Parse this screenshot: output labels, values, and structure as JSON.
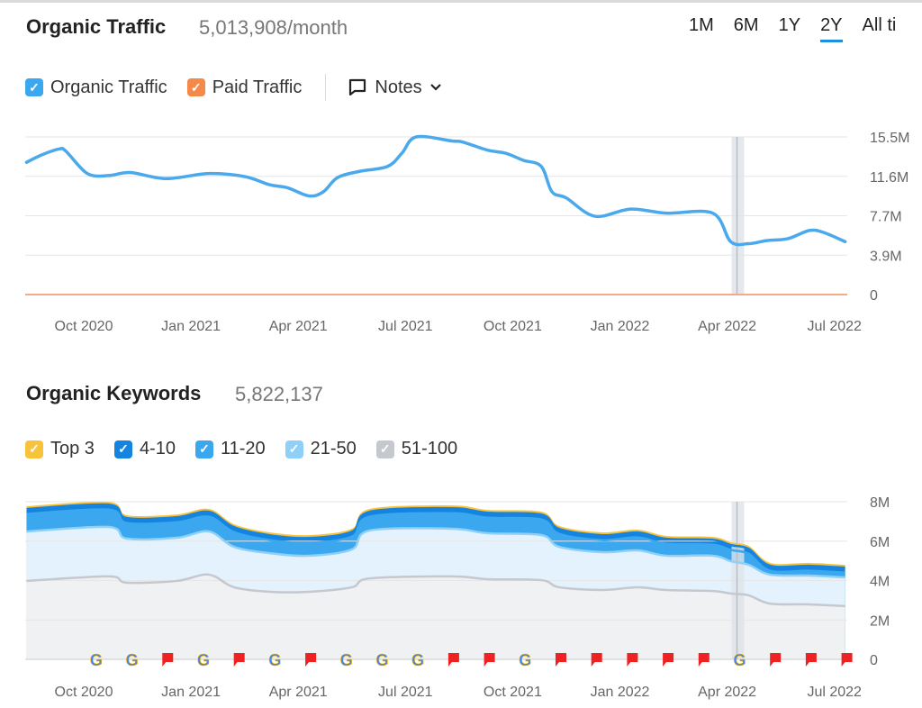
{
  "traffic": {
    "title": "Organic Traffic",
    "value": "5,013,908/month",
    "ranges": [
      "1M",
      "6M",
      "1Y",
      "2Y",
      "All ti"
    ],
    "active_range": "2Y",
    "legend": [
      {
        "label": "Organic Traffic",
        "color": "#3aa7ee"
      },
      {
        "label": "Paid Traffic",
        "color": "#f5894a"
      }
    ],
    "notes_label": "Notes"
  },
  "keywords": {
    "title": "Organic Keywords",
    "value": "5,822,137",
    "legend": [
      {
        "label": "Top 3",
        "color": "#f8c33a"
      },
      {
        "label": "4-10",
        "color": "#1584e0"
      },
      {
        "label": "11-20",
        "color": "#3aa7ee"
      },
      {
        "label": "21-50",
        "color": "#8fd0f8"
      },
      {
        "label": "51-100",
        "color": "#c4c8cf"
      }
    ]
  },
  "chart_data": [
    {
      "type": "line",
      "title": "Organic Traffic",
      "x_unit": "months since Oct 2020",
      "xticks": [
        "Oct 2020",
        "Jan 2021",
        "Apr 2021",
        "Jul 2021",
        "Oct 2021",
        "Jan 2022",
        "Apr 2022",
        "Jul 2022"
      ],
      "yticks": [
        "0",
        "3.9M",
        "7.7M",
        "11.6M",
        "15.5M"
      ],
      "ylim": [
        0,
        15.5
      ],
      "highlight_month": 18.3,
      "series": [
        {
          "name": "Organic Traffic",
          "color": "#4aa8ec",
          "x": [
            -1.6,
            -1.2,
            -0.7,
            -0.5,
            0.1,
            0.7,
            1.3,
            2.3,
            3.5,
            4.5,
            5.2,
            5.7,
            6.3,
            6.7,
            7.1,
            7.7,
            8.5,
            8.9,
            9.3,
            10.3,
            10.6,
            11.3,
            11.8,
            12.3,
            12.8,
            13.1,
            13.5,
            14.3,
            15.3,
            16.3,
            17.6,
            18.1,
            18.6,
            19.1,
            19.7,
            20.3,
            20.7,
            21.3
          ],
          "y": [
            13.0,
            13.7,
            14.3,
            14.1,
            11.9,
            11.7,
            12.0,
            11.4,
            11.9,
            11.6,
            10.8,
            10.5,
            9.7,
            10.1,
            11.5,
            12.1,
            12.6,
            13.9,
            15.5,
            15.1,
            15.0,
            14.2,
            13.9,
            13.2,
            12.6,
            10.1,
            9.5,
            7.7,
            8.4,
            8.0,
            8.0,
            5.2,
            5.0,
            5.3,
            5.5,
            6.3,
            6.1,
            5.2
          ]
        },
        {
          "name": "Paid Traffic",
          "color": "#f5a98a",
          "x": [
            -1.6,
            21.3
          ],
          "y": [
            0,
            0
          ]
        }
      ]
    },
    {
      "type": "area",
      "title": "Organic Keywords",
      "stacked_cumulative": true,
      "xticks": [
        "Oct 2020",
        "Jan 2021",
        "Apr 2021",
        "Jul 2021",
        "Oct 2021",
        "Jan 2022",
        "Apr 2022",
        "Jul 2022"
      ],
      "yticks": [
        "0",
        "2M",
        "4M",
        "6M",
        "8M"
      ],
      "ylim": [
        0,
        8
      ],
      "highlight_month": 18.3,
      "x": [
        -1.6,
        0.7,
        1.2,
        2.6,
        3.5,
        4.2,
        5.2,
        6.3,
        7.5,
        8.0,
        10.3,
        11.3,
        12.8,
        13.3,
        14.5,
        15.5,
        16.3,
        17.6,
        18.1,
        18.6,
        19.2,
        20.3,
        21.3
      ],
      "series": [
        {
          "name": "Top 3",
          "color": "#f8c33a",
          "y": [
            7.73,
            7.95,
            7.27,
            7.31,
            7.59,
            6.81,
            6.4,
            6.26,
            6.58,
            7.59,
            7.77,
            7.54,
            7.45,
            6.72,
            6.4,
            6.54,
            6.22,
            6.17,
            5.9,
            5.71,
            4.85,
            4.85,
            4.75
          ]
        },
        {
          "name": "4-10",
          "color": "#1584e0",
          "y": [
            7.63,
            7.85,
            7.17,
            7.21,
            7.49,
            6.71,
            6.3,
            6.16,
            6.48,
            7.49,
            7.67,
            7.44,
            7.35,
            6.62,
            6.3,
            6.44,
            6.12,
            6.07,
            5.8,
            5.61,
            4.75,
            4.75,
            4.65
          ]
        },
        {
          "name": "11-20",
          "color": "#3aa7ee",
          "y": [
            7.38,
            7.6,
            6.92,
            6.96,
            7.24,
            6.46,
            6.05,
            5.91,
            6.23,
            7.24,
            7.42,
            7.19,
            7.1,
            6.37,
            6.05,
            6.19,
            5.87,
            5.82,
            5.55,
            5.36,
            4.5,
            4.5,
            4.4
          ]
        },
        {
          "name": "21-50",
          "color": "#8fd0f8",
          "y": [
            6.49,
            6.72,
            6.13,
            6.17,
            6.49,
            5.71,
            5.39,
            5.26,
            5.58,
            6.54,
            6.63,
            6.4,
            6.31,
            5.71,
            5.44,
            5.53,
            5.26,
            5.26,
            4.98,
            4.8,
            4.3,
            4.25,
            4.16
          ]
        },
        {
          "name": "51-100",
          "color": "#c4c8cf",
          "y": [
            3.98,
            4.21,
            3.89,
            3.98,
            4.3,
            3.66,
            3.43,
            3.43,
            3.66,
            4.11,
            4.21,
            4.07,
            4.02,
            3.66,
            3.52,
            3.66,
            3.52,
            3.47,
            3.34,
            3.25,
            2.83,
            2.79,
            2.7
          ]
        }
      ],
      "event_markers": [
        "google",
        "google",
        "flag",
        "google",
        "flag",
        "google",
        "flag",
        "google",
        "google",
        "google",
        "flag",
        "flag",
        "google",
        "flag",
        "flag",
        "flag",
        "flag",
        "flag",
        "google",
        "flag",
        "flag",
        "flag"
      ]
    }
  ]
}
